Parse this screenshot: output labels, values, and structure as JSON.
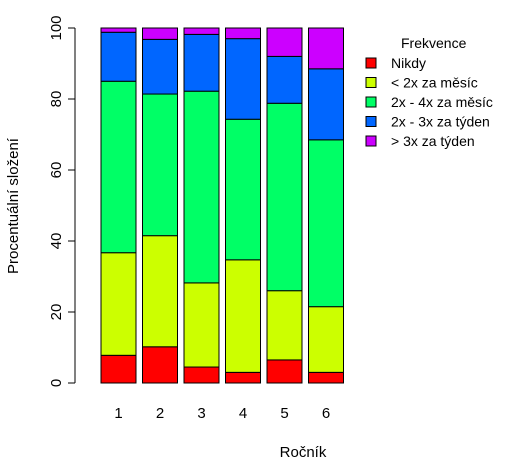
{
  "chart_data": {
    "type": "bar",
    "stacked": true,
    "title": "",
    "xlabel": "Ročník",
    "ylabel": "Procentuální složení",
    "ylim": [
      0,
      100
    ],
    "yticks": [
      "0",
      "20",
      "40",
      "60",
      "80",
      "100"
    ],
    "categories": [
      "1",
      "2",
      "3",
      "4",
      "5",
      "6"
    ],
    "legend": {
      "title": "Frekvence",
      "position": "right"
    },
    "series": [
      {
        "name": "Nikdy",
        "color": "#ff0000",
        "values": [
          7.8,
          10.2,
          4.5,
          3.0,
          6.5,
          3.0
        ]
      },
      {
        "name": "< 2x za měsíc",
        "color": "#ccff00",
        "values": [
          28.9,
          31.3,
          23.7,
          31.7,
          19.5,
          18.5
        ]
      },
      {
        "name": "2x - 4x za měsíc",
        "color": "#00ff66",
        "values": [
          48.3,
          39.9,
          54.0,
          39.6,
          52.8,
          47.0
        ]
      },
      {
        "name": "2x - 3x za týden",
        "color": "#0066ff",
        "values": [
          13.8,
          15.4,
          16.0,
          22.7,
          13.2,
          20.0
        ]
      },
      {
        "name": "> 3x za týden",
        "color": "#cc00ff",
        "values": [
          1.2,
          3.2,
          1.8,
          3.0,
          8.0,
          11.5
        ]
      }
    ]
  }
}
